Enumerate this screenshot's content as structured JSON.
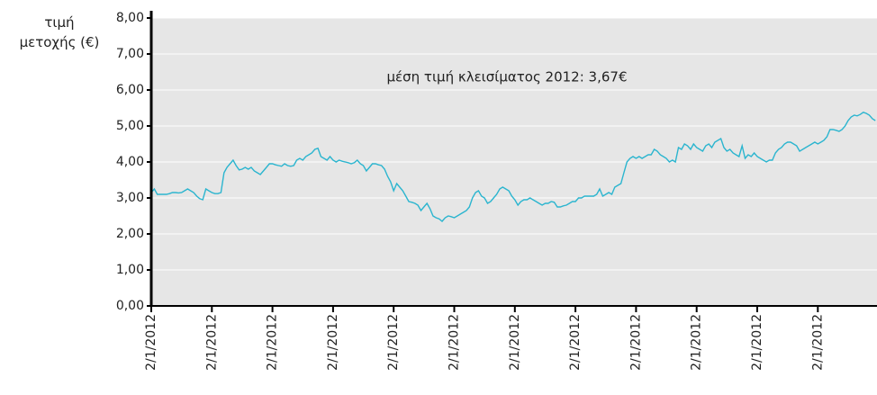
{
  "chart_data": {
    "type": "line",
    "ylabel": "τιμή μετοχής (€)",
    "annotation": "μέση τιμή κλεισίματος 2012: 3,67€",
    "ylim": [
      0,
      8
    ],
    "yticks": [
      {
        "value": 0,
        "label": "0,00"
      },
      {
        "value": 1,
        "label": "1,00"
      },
      {
        "value": 2,
        "label": "2,00"
      },
      {
        "value": 3,
        "label": "3,00"
      },
      {
        "value": 4,
        "label": "4,00"
      },
      {
        "value": 5,
        "label": "5,00"
      },
      {
        "value": 6,
        "label": "6,00"
      },
      {
        "value": 7,
        "label": "7,00"
      },
      {
        "value": 8,
        "label": "8,00"
      }
    ],
    "grid": true,
    "color": "#2bb5cf",
    "categories": [
      "2/1/2012",
      null,
      null,
      null,
      null,
      null,
      null,
      null,
      null,
      null,
      null,
      null,
      null,
      null,
      null,
      null,
      null,
      null,
      null,
      null,
      "2/1/2012",
      null,
      null,
      null,
      null,
      null,
      null,
      null,
      null,
      null,
      null,
      null,
      null,
      null,
      null,
      null,
      null,
      null,
      null,
      null,
      "2/1/2012",
      null,
      null,
      null,
      null,
      null,
      null,
      null,
      null,
      null,
      null,
      null,
      null,
      null,
      null,
      null,
      null,
      null,
      null,
      null,
      "2/1/2012",
      null,
      null,
      null,
      null,
      null,
      null,
      null,
      null,
      null,
      null,
      null,
      null,
      null,
      null,
      null,
      null,
      null,
      null,
      null,
      "2/1/2012",
      null,
      null,
      null,
      null,
      null,
      null,
      null,
      null,
      null,
      null,
      null,
      null,
      null,
      null,
      null,
      null,
      null,
      null,
      null,
      "2/1/2012",
      null,
      null,
      null,
      null,
      null,
      null,
      null,
      null,
      null,
      null,
      null,
      null,
      null,
      null,
      null,
      null,
      null,
      null,
      null,
      "2/1/2012",
      null,
      null,
      null,
      null,
      null,
      null,
      null,
      null,
      null,
      null,
      null,
      null,
      null,
      null,
      null,
      null,
      null,
      null,
      null,
      "2/1/2012",
      null,
      null,
      null,
      null,
      null,
      null,
      null,
      null,
      null,
      null,
      null,
      null,
      null,
      null,
      null,
      null,
      null,
      null,
      null,
      "2/1/2012",
      null,
      null,
      null,
      null,
      null,
      null,
      null,
      null,
      null,
      null,
      null,
      null,
      null,
      null,
      null,
      null,
      null,
      null,
      null,
      "2/1/2012",
      null,
      null,
      null,
      null,
      null,
      null,
      null,
      null,
      null,
      null,
      null,
      null,
      null,
      null,
      null,
      null,
      null,
      null,
      null,
      "2/1/2012",
      null,
      null,
      null,
      null,
      null,
      null,
      null,
      null,
      null,
      null,
      null,
      null,
      null,
      null,
      null,
      null,
      null,
      null,
      null,
      "2/1/2012",
      null,
      null,
      null,
      null,
      null,
      null,
      null,
      null,
      null,
      null,
      null,
      null,
      null,
      null,
      null,
      null,
      null,
      null,
      null
    ],
    "values": [
      3.15,
      3.25,
      3.1,
      3.1,
      3.1,
      3.1,
      3.12,
      3.15,
      3.15,
      3.14,
      3.15,
      3.2,
      3.25,
      3.2,
      3.15,
      3.05,
      2.98,
      2.95,
      3.25,
      3.2,
      3.15,
      3.12,
      3.12,
      3.15,
      3.7,
      3.85,
      3.95,
      4.05,
      3.9,
      3.78,
      3.8,
      3.85,
      3.8,
      3.85,
      3.75,
      3.7,
      3.65,
      3.75,
      3.85,
      3.95,
      3.95,
      3.92,
      3.9,
      3.88,
      3.95,
      3.9,
      3.88,
      3.9,
      4.05,
      4.1,
      4.05,
      4.15,
      4.2,
      4.25,
      4.35,
      4.38,
      4.15,
      4.1,
      4.05,
      4.15,
      4.05,
      4.0,
      4.05,
      4.02,
      4.0,
      3.98,
      3.95,
      3.98,
      4.05,
      3.95,
      3.9,
      3.75,
      3.85,
      3.95,
      3.95,
      3.92,
      3.9,
      3.8,
      3.6,
      3.45,
      3.2,
      3.4,
      3.3,
      3.2,
      3.05,
      2.9,
      2.88,
      2.85,
      2.8,
      2.65,
      2.75,
      2.85,
      2.7,
      2.5,
      2.45,
      2.42,
      2.35,
      2.45,
      2.5,
      2.48,
      2.45,
      2.5,
      2.55,
      2.6,
      2.65,
      2.75,
      3.0,
      3.15,
      3.2,
      3.05,
      3.0,
      2.85,
      2.9,
      3.0,
      3.1,
      3.25,
      3.3,
      3.25,
      3.2,
      3.05,
      2.95,
      2.8,
      2.9,
      2.95,
      2.95,
      3.0,
      2.95,
      2.9,
      2.85,
      2.8,
      2.85,
      2.85,
      2.9,
      2.88,
      2.75,
      2.75,
      2.78,
      2.8,
      2.85,
      2.9,
      2.9,
      3.0,
      3.0,
      3.05,
      3.05,
      3.05,
      3.05,
      3.1,
      3.25,
      3.05,
      3.1,
      3.15,
      3.1,
      3.3,
      3.35,
      3.4,
      3.7,
      4.0,
      4.1,
      4.15,
      4.1,
      4.15,
      4.1,
      4.15,
      4.2,
      4.2,
      4.35,
      4.3,
      4.2,
      4.15,
      4.1,
      4.0,
      4.05,
      4.0,
      4.4,
      4.35,
      4.5,
      4.45,
      4.35,
      4.5,
      4.4,
      4.35,
      4.3,
      4.45,
      4.5,
      4.4,
      4.55,
      4.6,
      4.65,
      4.4,
      4.3,
      4.35,
      4.25,
      4.2,
      4.15,
      4.45,
      4.1,
      4.2,
      4.15,
      4.25,
      4.15,
      4.1,
      4.05,
      4.0,
      4.05,
      4.05,
      4.25,
      4.35,
      4.4,
      4.5,
      4.55,
      4.55,
      4.5,
      4.45,
      4.3,
      4.35,
      4.4,
      4.45,
      4.5,
      4.55,
      4.5,
      4.55,
      4.6,
      4.7,
      4.9,
      4.9,
      4.88,
      4.85,
      4.9,
      5.0,
      5.15,
      5.25,
      5.3,
      5.28,
      5.32,
      5.38,
      5.35,
      5.3,
      5.2,
      5.15
    ]
  }
}
